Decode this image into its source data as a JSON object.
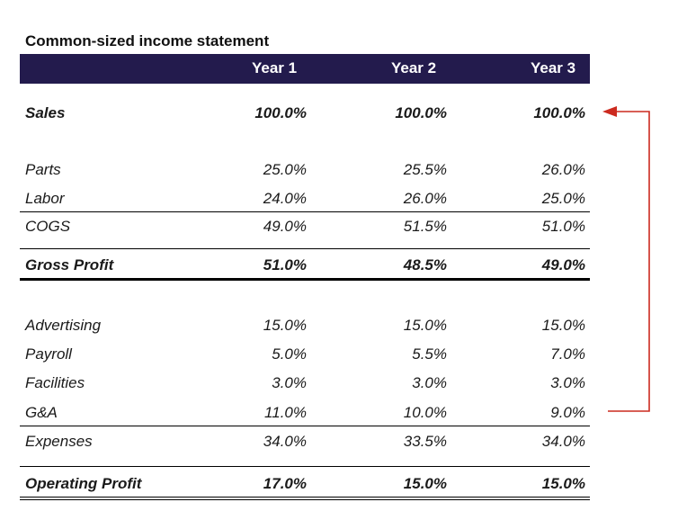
{
  "title": "Common-sized income statement",
  "headers": [
    "Year 1",
    "Year 2",
    "Year 3"
  ],
  "sales": {
    "label": "Sales",
    "values": [
      "100.0%",
      "100.0%",
      "100.0%"
    ]
  },
  "parts": {
    "label": "Parts",
    "values": [
      "25.0%",
      "25.5%",
      "26.0%"
    ]
  },
  "labor": {
    "label": "Labor",
    "values": [
      "24.0%",
      "26.0%",
      "25.0%"
    ]
  },
  "cogs": {
    "label": "COGS",
    "values": [
      "49.0%",
      "51.5%",
      "51.0%"
    ]
  },
  "gross_profit": {
    "label": "Gross Profit",
    "values": [
      "51.0%",
      "48.5%",
      "49.0%"
    ]
  },
  "advertising": {
    "label": "Advertising",
    "values": [
      "15.0%",
      "15.0%",
      "15.0%"
    ]
  },
  "payroll": {
    "label": "Payroll",
    "values": [
      "5.0%",
      "5.5%",
      "7.0%"
    ]
  },
  "facilities": {
    "label": "Facilities",
    "values": [
      "3.0%",
      "3.0%",
      "3.0%"
    ]
  },
  "ga": {
    "label": "G&A",
    "values": [
      "11.0%",
      "10.0%",
      "9.0%"
    ]
  },
  "expenses": {
    "label": "Expenses",
    "values": [
      "34.0%",
      "33.5%",
      "34.0%"
    ]
  },
  "operating_profit": {
    "label": "Operating Profit",
    "values": [
      "17.0%",
      "15.0%",
      "15.0%"
    ]
  },
  "colors": {
    "header_bg": "#231b4d",
    "arrow": "#cc2a1f"
  }
}
